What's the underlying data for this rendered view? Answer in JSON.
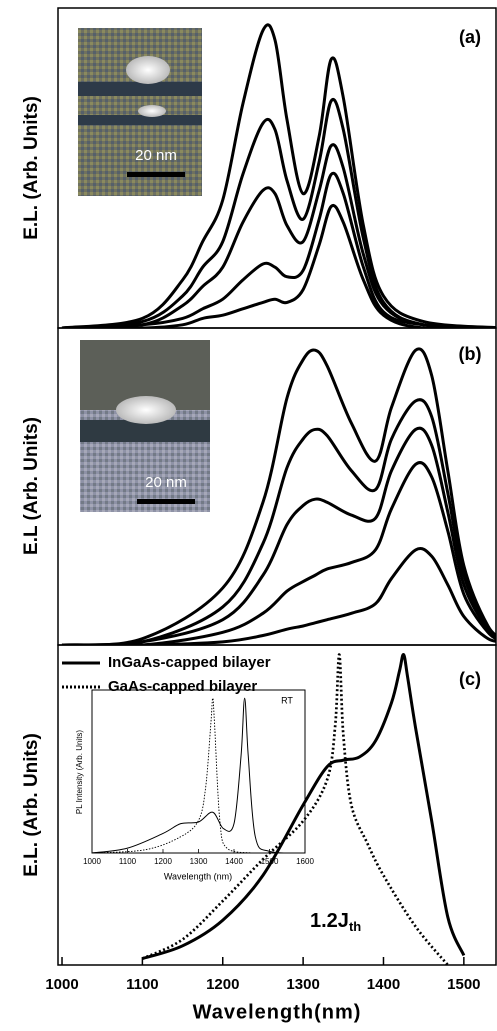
{
  "chart_data": [
    {
      "type": "line",
      "panel_label": "(a)",
      "ylabel": "E.L. (Arb. Units)",
      "scale_bar_label": "20 nm",
      "xlim": [
        995,
        1540
      ],
      "ylim": [
        0,
        100
      ],
      "series": [
        {
          "color": "#000000",
          "style": "solid",
          "x": [
            1000,
            1100,
            1150,
            1175,
            1200,
            1225,
            1250,
            1265,
            1280,
            1300,
            1320,
            1335,
            1350,
            1375,
            1400,
            1450,
            1550
          ],
          "values": [
            0,
            3,
            15,
            27,
            40,
            70,
            93,
            90,
            65,
            42,
            60,
            84,
            72,
            32,
            10,
            2,
            0
          ]
        },
        {
          "color": "#000000",
          "style": "solid",
          "x": [
            1000,
            1100,
            1150,
            1175,
            1200,
            1225,
            1250,
            1265,
            1280,
            1300,
            1320,
            1335,
            1350,
            1375,
            1400,
            1450,
            1550
          ],
          "values": [
            0,
            2,
            10,
            19,
            27,
            48,
            64,
            62,
            46,
            34,
            52,
            71,
            62,
            28,
            8,
            1,
            0
          ]
        },
        {
          "color": "#000000",
          "style": "solid",
          "x": [
            1000,
            1100,
            1150,
            1175,
            1200,
            1225,
            1250,
            1265,
            1280,
            1300,
            1320,
            1335,
            1350,
            1375,
            1400,
            1450,
            1550
          ],
          "values": [
            0,
            1,
            7,
            13,
            19,
            33,
            43,
            42,
            32,
            27,
            43,
            57,
            50,
            23,
            7,
            1,
            0
          ]
        },
        {
          "color": "#000000",
          "style": "solid",
          "x": [
            1000,
            1100,
            1150,
            1175,
            1200,
            1225,
            1250,
            1265,
            1280,
            1300,
            1320,
            1335,
            1350,
            1375,
            1400,
            1450,
            1550
          ],
          "values": [
            0,
            1,
            3,
            6,
            9,
            15,
            20,
            19,
            16,
            18,
            34,
            48,
            42,
            19,
            5,
            1,
            0
          ]
        },
        {
          "color": "#000000",
          "style": "solid",
          "x": [
            1000,
            1100,
            1150,
            1175,
            1200,
            1225,
            1250,
            1265,
            1280,
            1300,
            1320,
            1335,
            1350,
            1375,
            1400,
            1450,
            1550
          ],
          "values": [
            0,
            0,
            1,
            3,
            4,
            6,
            8,
            9,
            8,
            12,
            26,
            38,
            33,
            15,
            4,
            0,
            0
          ]
        }
      ]
    },
    {
      "type": "line",
      "panel_label": "(b)",
      "ylabel": "E.L (Arb. Units)",
      "scale_bar_label": "20 nm",
      "xlim": [
        995,
        1540
      ],
      "ylim": [
        0,
        100
      ],
      "series": [
        {
          "color": "#000000",
          "style": "solid",
          "x": [
            1000,
            1100,
            1200,
            1250,
            1280,
            1300,
            1315,
            1330,
            1360,
            1390,
            1410,
            1440,
            1460,
            1480,
            1500,
            1530,
            1550
          ],
          "values": [
            0,
            2,
            18,
            45,
            78,
            90,
            93,
            88,
            70,
            58,
            75,
            93,
            85,
            55,
            25,
            6,
            2
          ]
        },
        {
          "color": "#000000",
          "style": "solid",
          "x": [
            1000,
            1100,
            1200,
            1250,
            1280,
            1300,
            1315,
            1330,
            1360,
            1390,
            1410,
            1440,
            1460,
            1480,
            1500,
            1530,
            1550
          ],
          "values": [
            0,
            1,
            12,
            32,
            56,
            65,
            68,
            66,
            55,
            49,
            65,
            77,
            72,
            48,
            22,
            5,
            2
          ]
        },
        {
          "color": "#000000",
          "style": "solid",
          "x": [
            1000,
            1100,
            1200,
            1250,
            1280,
            1300,
            1315,
            1330,
            1360,
            1390,
            1410,
            1440,
            1460,
            1480,
            1500,
            1530,
            1550
          ],
          "values": [
            0,
            1,
            8,
            22,
            38,
            44,
            46,
            45,
            41,
            40,
            55,
            68,
            63,
            42,
            19,
            5,
            2
          ]
        },
        {
          "color": "#000000",
          "style": "solid",
          "x": [
            1000,
            1100,
            1200,
            1250,
            1280,
            1300,
            1315,
            1330,
            1360,
            1390,
            1410,
            1440,
            1460,
            1480,
            1500,
            1530,
            1550
          ],
          "values": [
            0,
            0,
            4,
            10,
            17,
            20,
            22,
            24,
            26,
            30,
            43,
            57,
            53,
            36,
            16,
            4,
            1
          ]
        },
        {
          "color": "#000000",
          "style": "solid",
          "x": [
            1000,
            1100,
            1200,
            1250,
            1280,
            1300,
            1315,
            1330,
            1360,
            1390,
            1410,
            1440,
            1460,
            1480,
            1500,
            1530,
            1550
          ],
          "values": [
            0,
            0,
            1,
            3,
            5,
            6,
            7,
            8,
            10,
            13,
            21,
            30,
            28,
            19,
            9,
            2,
            1
          ]
        }
      ]
    },
    {
      "type": "line",
      "panel_label": "(c)",
      "ylabel": "E.L. (Arb. Units)",
      "xlabel": "Wavelength(nm)",
      "annotation": "1.2J",
      "annotation_subscript": "th",
      "xlim": [
        995,
        1540
      ],
      "ylim": [
        0,
        100
      ],
      "xticks": [
        1000,
        1100,
        1200,
        1300,
        1400,
        1500
      ],
      "series": [
        {
          "name": "InGaAs-capped bilayer",
          "color": "#000000",
          "style": "solid",
          "x": [
            1100,
            1150,
            1200,
            1250,
            1300,
            1330,
            1350,
            1370,
            1390,
            1410,
            1420,
            1425,
            1430,
            1440,
            1460,
            1480,
            1500
          ],
          "values": [
            2,
            6,
            14,
            28,
            50,
            62,
            64,
            65,
            70,
            82,
            92,
            97,
            90,
            74,
            45,
            15,
            3
          ]
        },
        {
          "name": "GaAs-capped bilayer",
          "color": "#000000",
          "style": "dotted",
          "x": [
            1100,
            1150,
            1200,
            1250,
            1300,
            1330,
            1340,
            1345,
            1350,
            1360,
            1380,
            1400,
            1440,
            1480
          ],
          "values": [
            2,
            8,
            20,
            33,
            45,
            58,
            75,
            97,
            72,
            50,
            38,
            28,
            12,
            0
          ]
        }
      ]
    },
    {
      "type": "line",
      "ylabel": "PL Intensity (Arb. Units)",
      "xlabel": "Wavelength (nm)",
      "annotation": "RT",
      "xlim": [
        1000,
        1600
      ],
      "ylim": [
        0,
        100
      ],
      "xticks": [
        1000,
        1100,
        1200,
        1300,
        1400,
        1500,
        1600
      ],
      "series": [
        {
          "color": "#000000",
          "style": "solid",
          "x": [
            1000,
            1100,
            1200,
            1250,
            1300,
            1340,
            1370,
            1400,
            1420,
            1430,
            1440,
            1460,
            1500,
            1600
          ],
          "values": [
            0,
            3,
            12,
            18,
            19,
            25,
            15,
            18,
            60,
            95,
            60,
            10,
            1,
            0
          ]
        },
        {
          "color": "#000000",
          "style": "dotted",
          "x": [
            1000,
            1150,
            1250,
            1300,
            1320,
            1335,
            1340,
            1345,
            1360,
            1380,
            1450
          ],
          "values": [
            0,
            2,
            10,
            20,
            40,
            80,
            95,
            80,
            20,
            3,
            0
          ]
        }
      ]
    }
  ]
}
